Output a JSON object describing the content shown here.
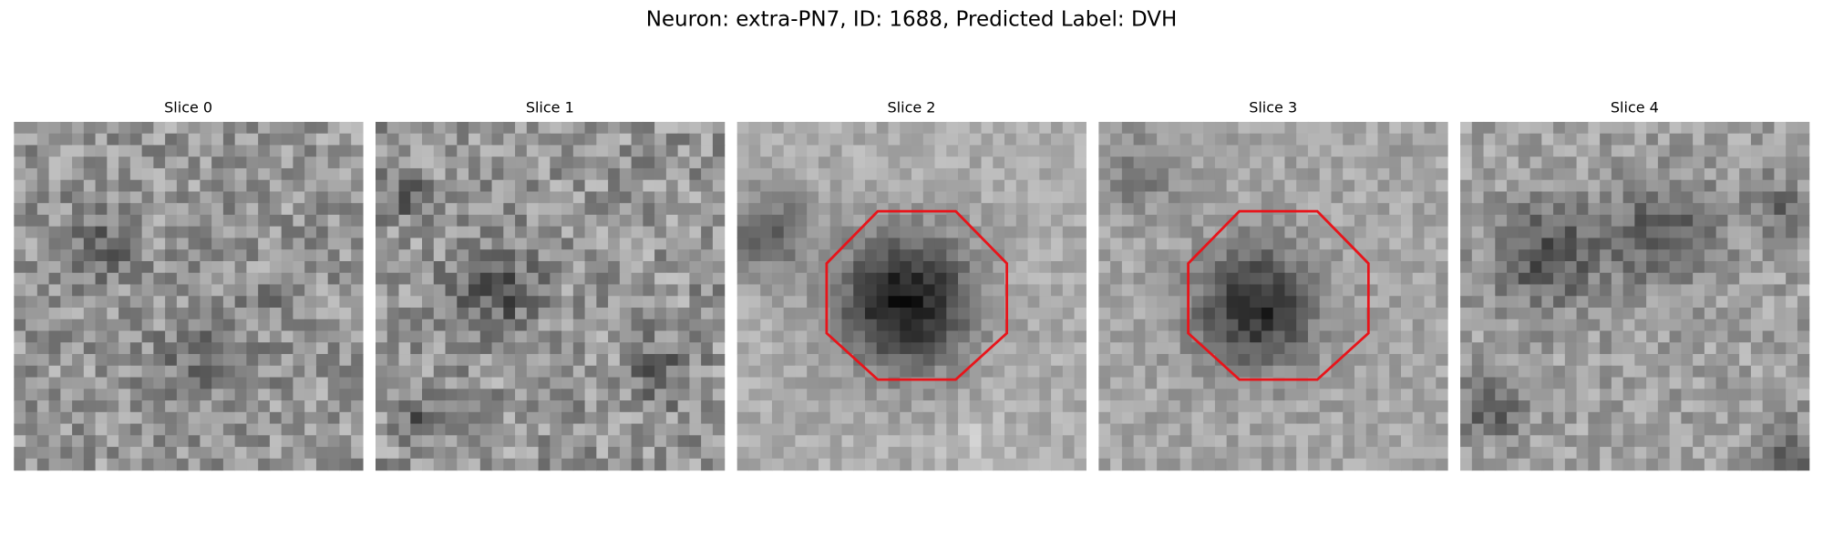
{
  "title": "Neuron: extra-PN7, ID: 1688, Predicted Label: DVH",
  "panels": [
    {
      "title": "Slice 0"
    },
    {
      "title": "Slice 1"
    },
    {
      "title": "Slice 2"
    },
    {
      "title": "Slice 3"
    },
    {
      "title": "Slice 4"
    }
  ]
}
